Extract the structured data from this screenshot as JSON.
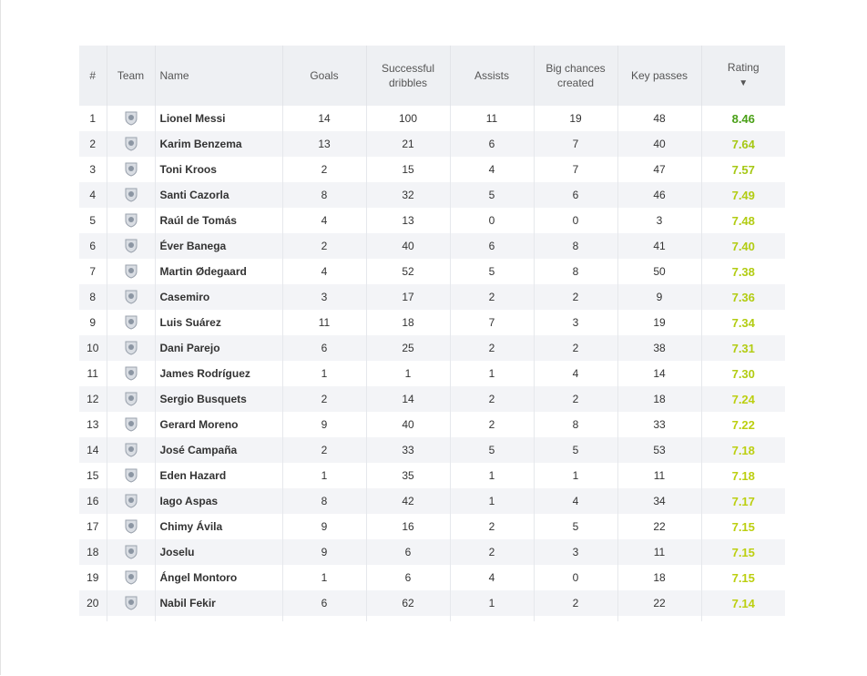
{
  "table": {
    "columns": [
      "#",
      "Team",
      "Name",
      "Goals",
      "Successful dribbles",
      "Assists",
      "Big chances created",
      "Key passes",
      "Rating"
    ],
    "sort_indicator": "▼",
    "rows": [
      {
        "rank": 1,
        "name": "Lionel Messi",
        "goals": 14,
        "dribbles": 100,
        "assists": 11,
        "big_chances": 19,
        "key_passes": 48,
        "rating": "8.46",
        "rating_color": "#4aa017"
      },
      {
        "rank": 2,
        "name": "Karim Benzema",
        "goals": 13,
        "dribbles": 21,
        "assists": 6,
        "big_chances": 7,
        "key_passes": 40,
        "rating": "7.64",
        "rating_color": "#a6c814"
      },
      {
        "rank": 3,
        "name": "Toni Kroos",
        "goals": 2,
        "dribbles": 15,
        "assists": 4,
        "big_chances": 7,
        "key_passes": 47,
        "rating": "7.57",
        "rating_color": "#a6c814"
      },
      {
        "rank": 4,
        "name": "Santi Cazorla",
        "goals": 8,
        "dribbles": 32,
        "assists": 5,
        "big_chances": 6,
        "key_passes": 46,
        "rating": "7.49",
        "rating_color": "#b2cc12"
      },
      {
        "rank": 5,
        "name": "Raúl de Tomás",
        "goals": 4,
        "dribbles": 13,
        "assists": 0,
        "big_chances": 0,
        "key_passes": 3,
        "rating": "7.48",
        "rating_color": "#b2cc12"
      },
      {
        "rank": 6,
        "name": "Éver Banega",
        "goals": 2,
        "dribbles": 40,
        "assists": 6,
        "big_chances": 8,
        "key_passes": 41,
        "rating": "7.40",
        "rating_color": "#b2cc12"
      },
      {
        "rank": 7,
        "name": "Martin Ødegaard",
        "goals": 4,
        "dribbles": 52,
        "assists": 5,
        "big_chances": 8,
        "key_passes": 50,
        "rating": "7.38",
        "rating_color": "#b2cc12"
      },
      {
        "rank": 8,
        "name": "Casemiro",
        "goals": 3,
        "dribbles": 17,
        "assists": 2,
        "big_chances": 2,
        "key_passes": 9,
        "rating": "7.36",
        "rating_color": "#b2cc12"
      },
      {
        "rank": 9,
        "name": "Luis Suárez",
        "goals": 11,
        "dribbles": 18,
        "assists": 7,
        "big_chances": 3,
        "key_passes": 19,
        "rating": "7.34",
        "rating_color": "#b2cc12"
      },
      {
        "rank": 10,
        "name": "Dani Parejo",
        "goals": 6,
        "dribbles": 25,
        "assists": 2,
        "big_chances": 2,
        "key_passes": 38,
        "rating": "7.31",
        "rating_color": "#b2cc12"
      },
      {
        "rank": 11,
        "name": "James Rodríguez",
        "goals": 1,
        "dribbles": 1,
        "assists": 1,
        "big_chances": 4,
        "key_passes": 14,
        "rating": "7.30",
        "rating_color": "#b2cc12"
      },
      {
        "rank": 12,
        "name": "Sergio Busquets",
        "goals": 2,
        "dribbles": 14,
        "assists": 2,
        "big_chances": 2,
        "key_passes": 18,
        "rating": "7.24",
        "rating_color": "#bccf10"
      },
      {
        "rank": 13,
        "name": "Gerard Moreno",
        "goals": 9,
        "dribbles": 40,
        "assists": 2,
        "big_chances": 8,
        "key_passes": 33,
        "rating": "7.22",
        "rating_color": "#bccf10"
      },
      {
        "rank": 14,
        "name": "José Campaña",
        "goals": 2,
        "dribbles": 33,
        "assists": 5,
        "big_chances": 5,
        "key_passes": 53,
        "rating": "7.18",
        "rating_color": "#bccf10"
      },
      {
        "rank": 15,
        "name": "Eden Hazard",
        "goals": 1,
        "dribbles": 35,
        "assists": 1,
        "big_chances": 1,
        "key_passes": 11,
        "rating": "7.18",
        "rating_color": "#bccf10"
      },
      {
        "rank": 16,
        "name": "Iago Aspas",
        "goals": 8,
        "dribbles": 42,
        "assists": 1,
        "big_chances": 4,
        "key_passes": 34,
        "rating": "7.17",
        "rating_color": "#bccf10"
      },
      {
        "rank": 17,
        "name": "Chimy Ávila",
        "goals": 9,
        "dribbles": 16,
        "assists": 2,
        "big_chances": 5,
        "key_passes": 22,
        "rating": "7.15",
        "rating_color": "#bccf10"
      },
      {
        "rank": 18,
        "name": "Joselu",
        "goals": 9,
        "dribbles": 6,
        "assists": 2,
        "big_chances": 3,
        "key_passes": 11,
        "rating": "7.15",
        "rating_color": "#bccf10"
      },
      {
        "rank": 19,
        "name": "Ángel Montoro",
        "goals": 1,
        "dribbles": 6,
        "assists": 4,
        "big_chances": 0,
        "key_passes": 18,
        "rating": "7.15",
        "rating_color": "#bccf10"
      },
      {
        "rank": 20,
        "name": "Nabil Fekir",
        "goals": 6,
        "dribbles": 62,
        "assists": 1,
        "big_chances": 2,
        "key_passes": 22,
        "rating": "7.14",
        "rating_color": "#bccf10"
      }
    ]
  }
}
